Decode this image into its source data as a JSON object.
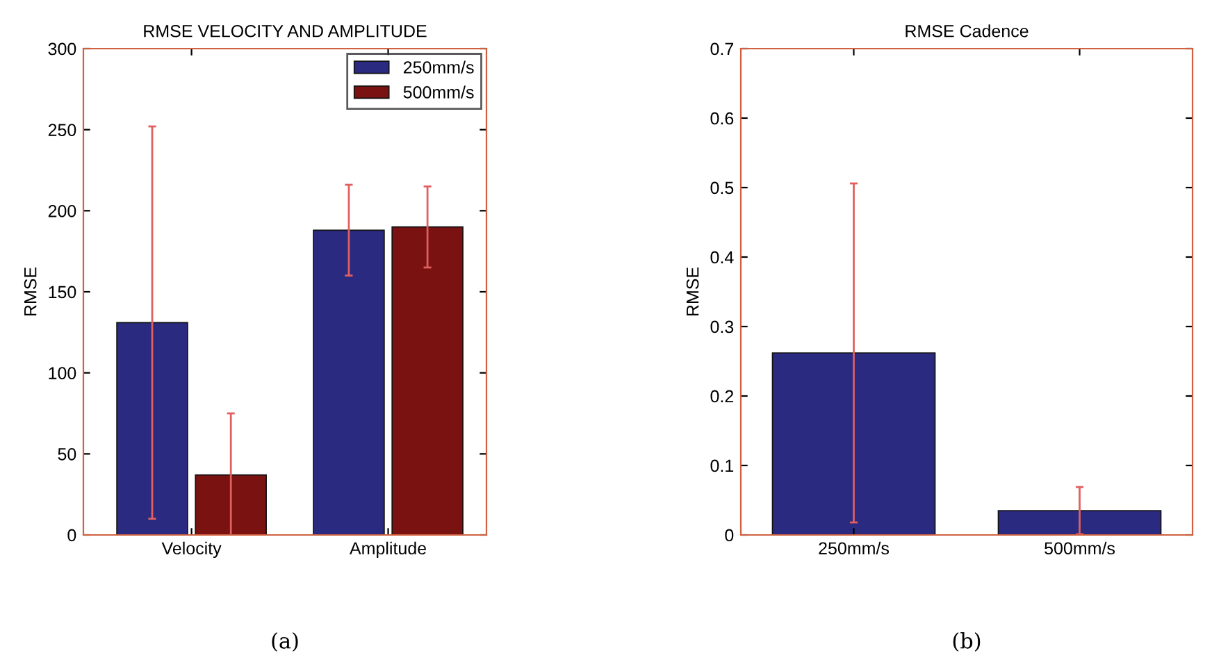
{
  "chart_data": [
    {
      "type": "bar",
      "title": "RMSE VELOCITY AND AMPLITUDE",
      "ylabel": "RMSE",
      "categories": [
        "Velocity",
        "Amplitude"
      ],
      "series": [
        {
          "name": "250mm/s",
          "color": "#2a2a80",
          "values": [
            131,
            188
          ],
          "errors": [
            121,
            28
          ]
        },
        {
          "name": "500mm/s",
          "color": "#7a1212",
          "values": [
            37,
            190
          ],
          "errors": [
            38,
            25
          ]
        }
      ],
      "ylim": [
        0,
        300
      ],
      "yticks": [
        0,
        50,
        100,
        150,
        200,
        250,
        300
      ],
      "legend": "top right",
      "grid": false,
      "annotations": [
        "(a)"
      ]
    },
    {
      "type": "bar",
      "title": "RMSE Cadence",
      "ylabel": "RMSE",
      "categories": [
        "250mm/s",
        "500mm/s"
      ],
      "series": [
        {
          "color": "#2a2a80",
          "values": [
            0.262,
            0.035
          ],
          "errors": [
            0.244,
            0.034
          ]
        }
      ],
      "ylim": [
        0,
        0.7
      ],
      "yticks": [
        0,
        0.1,
        0.2,
        0.3,
        0.4,
        0.5,
        0.6,
        0.7
      ],
      "grid": false,
      "annotations": [
        "(b)"
      ]
    }
  ]
}
